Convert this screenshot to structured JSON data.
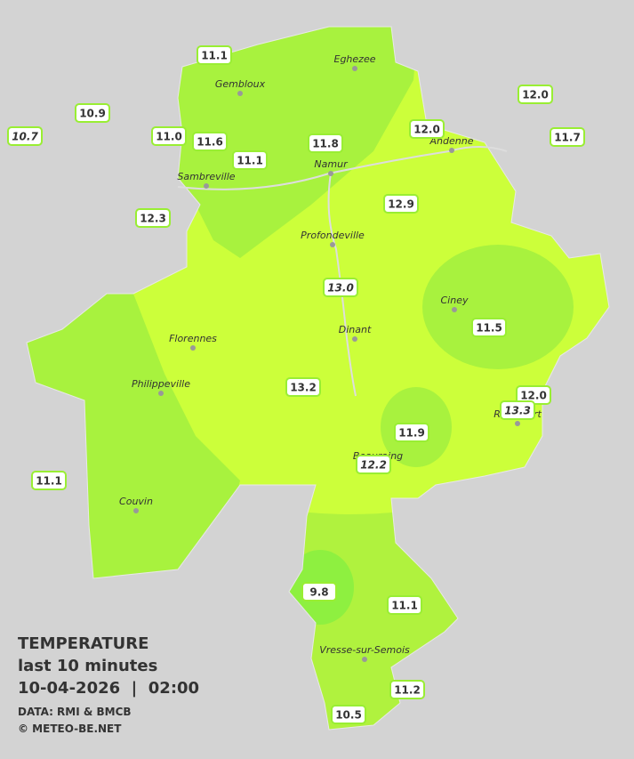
{
  "cities": [
    "Eghezee",
    "Gembloux",
    "Andenne",
    "Namur",
    "Sambreville",
    "Profondeville",
    "Ciney",
    "Florennes",
    "Dinant",
    "Philippeville",
    "Rochefort",
    "Beauraing",
    "Couvin",
    "Vresse-sur-Semois"
  ],
  "stations": [
    {
      "label": "11.1",
      "italic": false
    },
    {
      "label": "10.9",
      "italic": false
    },
    {
      "label": "10.7",
      "italic": true
    },
    {
      "label": "11.0",
      "italic": false
    },
    {
      "label": "11.6",
      "italic": false
    },
    {
      "label": "11.1",
      "italic": false
    },
    {
      "label": "11.8",
      "italic": false
    },
    {
      "label": "12.0",
      "italic": false
    },
    {
      "label": "12.0",
      "italic": false
    },
    {
      "label": "11.7",
      "italic": false
    },
    {
      "label": "12.3",
      "italic": false
    },
    {
      "label": "12.9",
      "italic": false
    },
    {
      "label": "13.0",
      "italic": true
    },
    {
      "label": "11.5",
      "italic": false
    },
    {
      "label": "13.2",
      "italic": false
    },
    {
      "label": "12.0",
      "italic": false
    },
    {
      "label": "13.3",
      "italic": true
    },
    {
      "label": "11.9",
      "italic": false
    },
    {
      "label": "12.2",
      "italic": true
    },
    {
      "label": "11.1",
      "italic": false
    },
    {
      "label": "9.8",
      "italic": false
    },
    {
      "label": "11.1",
      "italic": false
    },
    {
      "label": "11.2",
      "italic": false
    },
    {
      "label": "10.5",
      "italic": false
    }
  ],
  "legend": {
    "title": "TEMPERATURE",
    "subtitle": "last 10 minutes",
    "datetime": "10-04-2026  |  02:00",
    "source": "DATA: RMI & BMCB",
    "copyright": "© METEO-BE.NET"
  }
}
